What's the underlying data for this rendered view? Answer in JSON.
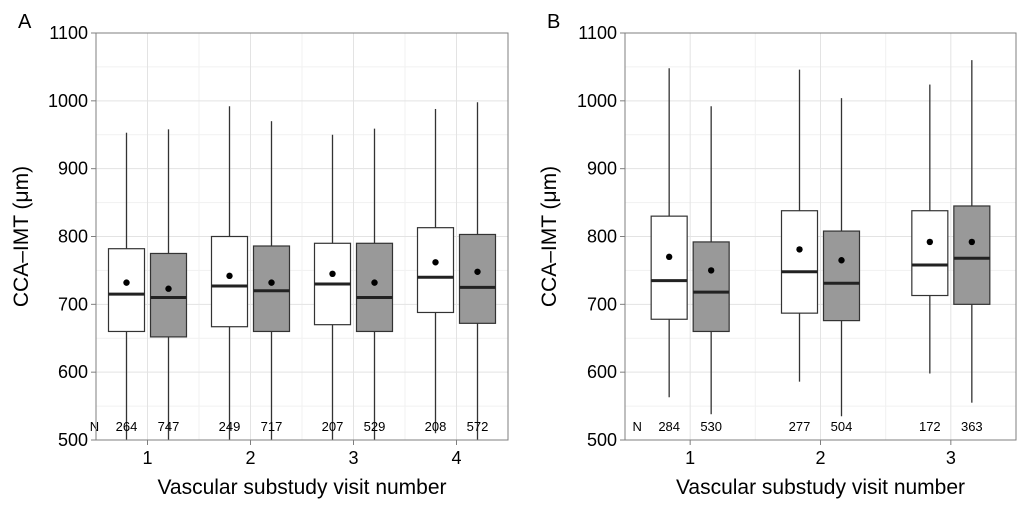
{
  "colors": {
    "group1": "#ffffff",
    "group2": "#999999",
    "outline": "#333333"
  },
  "chart_data": [
    {
      "panel": "A",
      "type": "box",
      "xlabel": "Vascular substudy visit number",
      "ylabel": "CCA–IMT (μm)",
      "ylim": [
        500,
        1100
      ],
      "yticks": [
        500,
        600,
        700,
        800,
        900,
        1000,
        1100
      ],
      "categories": [
        "1",
        "2",
        "3",
        "4"
      ],
      "n_prefix": "N",
      "grid": true,
      "series": [
        {
          "fill": "#ffffff",
          "whisker_low": [
            500,
            500,
            500,
            510
          ],
          "q1": [
            660,
            667,
            670,
            688
          ],
          "median": [
            715,
            727,
            730,
            740
          ],
          "q3": [
            782,
            800,
            790,
            813
          ],
          "whisker_high": [
            953,
            992,
            950,
            988
          ],
          "mean": [
            732,
            742,
            745,
            762
          ],
          "n": [
            "264",
            "249",
            "207",
            "208"
          ]
        },
        {
          "fill": "#999999",
          "whisker_low": [
            500,
            500,
            500,
            500
          ],
          "q1": [
            652,
            660,
            660,
            672
          ],
          "median": [
            710,
            720,
            710,
            725
          ],
          "q3": [
            775,
            786,
            790,
            803
          ],
          "whisker_high": [
            958,
            970,
            959,
            998
          ],
          "mean": [
            723,
            732,
            732,
            748
          ],
          "n": [
            "747",
            "717",
            "529",
            "572"
          ]
        }
      ]
    },
    {
      "panel": "B",
      "type": "box",
      "xlabel": "Vascular substudy visit number",
      "ylabel": "CCA–IMT (μm)",
      "ylim": [
        500,
        1100
      ],
      "yticks": [
        500,
        600,
        700,
        800,
        900,
        1000,
        1100
      ],
      "categories": [
        "1",
        "2",
        "3"
      ],
      "n_prefix": "N",
      "grid": true,
      "series": [
        {
          "fill": "#ffffff",
          "whisker_low": [
            563,
            586,
            598
          ],
          "q1": [
            678,
            687,
            713
          ],
          "median": [
            735,
            748,
            758
          ],
          "q3": [
            830,
            838,
            838
          ],
          "whisker_high": [
            1048,
            1046,
            1024
          ],
          "mean": [
            770,
            781,
            792
          ],
          "n": [
            "284",
            "277",
            "172"
          ]
        },
        {
          "fill": "#999999",
          "whisker_low": [
            538,
            535,
            555
          ],
          "q1": [
            660,
            676,
            700
          ],
          "median": [
            718,
            731,
            768
          ],
          "q3": [
            792,
            808,
            845
          ],
          "whisker_high": [
            992,
            1004,
            1060
          ],
          "mean": [
            750,
            765,
            792
          ],
          "n": [
            "530",
            "504",
            "363"
          ]
        }
      ]
    }
  ]
}
